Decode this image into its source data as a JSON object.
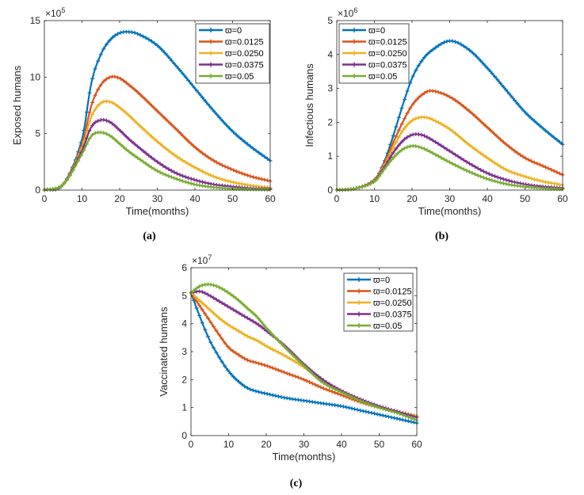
{
  "colors": [
    "#0072BD",
    "#D95319",
    "#EDB120",
    "#7E2F8E",
    "#77AC30"
  ],
  "chart_data": [
    {
      "type": "line",
      "caption": "(a)",
      "xlabel": "Time(months)",
      "ylabel": "Exposed humans",
      "y_multiplier": "×10",
      "y_exponent": "5",
      "xlim": [
        0,
        60
      ],
      "ylim": [
        0,
        15
      ],
      "xticks": [
        "0",
        "10",
        "20",
        "30",
        "40",
        "50",
        "60"
      ],
      "yticks": [
        "0",
        "5",
        "10",
        "15"
      ],
      "legend_position": "top-right",
      "x": [
        0,
        5,
        10,
        12.5,
        15,
        17.5,
        20,
        22.5,
        25,
        30,
        35,
        40,
        45,
        50,
        55,
        60
      ],
      "series": [
        {
          "name": "ϖ=0",
          "values": [
            0,
            0.5,
            4.5,
            9.5,
            12,
            13.3,
            13.9,
            14.0,
            13.8,
            12.8,
            11,
            9,
            7,
            5.2,
            3.8,
            2.6
          ]
        },
        {
          "name": "ϖ=0.0125",
          "values": [
            0,
            0.5,
            4,
            7.5,
            9.3,
            10,
            9.9,
            9.3,
            8.6,
            7,
            5.4,
            3.8,
            2.6,
            1.8,
            1.2,
            0.8
          ]
        },
        {
          "name": "ϖ=0.0250",
          "values": [
            0,
            0.5,
            3.8,
            6.5,
            7.7,
            7.8,
            7.3,
            6.6,
            5.8,
            4.3,
            3.0,
            2.0,
            1.2,
            0.7,
            0.4,
            0.2
          ]
        },
        {
          "name": "ϖ=0.0375",
          "values": [
            0,
            0.5,
            3.5,
            5.6,
            6.2,
            6.0,
            5.3,
            4.5,
            3.8,
            2.5,
            1.5,
            0.9,
            0.5,
            0.3,
            0.15,
            0.1
          ]
        },
        {
          "name": "ϖ=0.05",
          "values": [
            0,
            0.5,
            3.2,
            4.8,
            5.1,
            4.8,
            4.1,
            3.4,
            2.8,
            1.7,
            1.0,
            0.5,
            0.25,
            0.12,
            0.06,
            0.03
          ]
        }
      ]
    },
    {
      "type": "line",
      "caption": "(b)",
      "xlabel": "Time(months)",
      "ylabel": "Infectious humans",
      "y_multiplier": "×10",
      "y_exponent": "6",
      "xlim": [
        0,
        60
      ],
      "ylim": [
        0,
        5
      ],
      "xticks": [
        "0",
        "10",
        "20",
        "30",
        "40",
        "50",
        "60"
      ],
      "yticks": [
        "0",
        "1",
        "2",
        "3",
        "4",
        "5"
      ],
      "legend_position": "top-left",
      "x": [
        0,
        5,
        10,
        12.5,
        15,
        17.5,
        20,
        22.5,
        25,
        30,
        35,
        40,
        45,
        50,
        55,
        60
      ],
      "series": [
        {
          "name": "ϖ=0",
          "values": [
            0,
            0.05,
            0.3,
            0.8,
            1.6,
            2.5,
            3.3,
            3.8,
            4.1,
            4.4,
            4.15,
            3.6,
            2.95,
            2.3,
            1.8,
            1.35
          ]
        },
        {
          "name": "ϖ=0.0125",
          "values": [
            0,
            0.05,
            0.3,
            0.75,
            1.4,
            2.0,
            2.5,
            2.8,
            2.93,
            2.75,
            2.35,
            1.85,
            1.35,
            0.95,
            0.7,
            0.45
          ]
        },
        {
          "name": "ϖ=0.0250",
          "values": [
            0,
            0.05,
            0.28,
            0.7,
            1.25,
            1.75,
            2.05,
            2.15,
            2.1,
            1.8,
            1.35,
            0.95,
            0.6,
            0.4,
            0.25,
            0.15
          ]
        },
        {
          "name": "ϖ=0.0375",
          "values": [
            0,
            0.05,
            0.27,
            0.65,
            1.1,
            1.45,
            1.63,
            1.63,
            1.5,
            1.15,
            0.8,
            0.5,
            0.3,
            0.17,
            0.1,
            0.06
          ]
        },
        {
          "name": "ϖ=0.05",
          "values": [
            0,
            0.05,
            0.25,
            0.6,
            0.95,
            1.2,
            1.3,
            1.25,
            1.12,
            0.82,
            0.55,
            0.33,
            0.18,
            0.1,
            0.05,
            0.03
          ]
        }
      ]
    },
    {
      "type": "line",
      "caption": "(c)",
      "xlabel": "Time(months)",
      "ylabel": "Vaccinated humans",
      "y_multiplier": "×10",
      "y_exponent": "7",
      "xlim": [
        0,
        60
      ],
      "ylim": [
        0,
        6
      ],
      "xticks": [
        "0",
        "10",
        "20",
        "30",
        "40",
        "50",
        "60"
      ],
      "yticks": [
        "0",
        "1",
        "2",
        "3",
        "4",
        "5",
        "6"
      ],
      "legend_position": "top-right",
      "x": [
        0,
        2.5,
        5,
        7.5,
        10,
        12.5,
        15,
        17.5,
        20,
        25,
        30,
        35,
        40,
        45,
        50,
        55,
        60
      ],
      "series": [
        {
          "name": "ϖ=0",
          "values": [
            5.1,
            4.2,
            3.4,
            2.8,
            2.3,
            1.95,
            1.7,
            1.58,
            1.5,
            1.35,
            1.25,
            1.15,
            1.05,
            0.9,
            0.75,
            0.6,
            0.45
          ]
        },
        {
          "name": "ϖ=0.0125",
          "values": [
            5.1,
            4.6,
            4.1,
            3.6,
            3.15,
            2.9,
            2.7,
            2.6,
            2.5,
            2.25,
            2.0,
            1.7,
            1.45,
            1.2,
            1.0,
            0.85,
            0.7
          ]
        },
        {
          "name": "ϖ=0.0250",
          "values": [
            5.1,
            4.8,
            4.5,
            4.2,
            3.95,
            3.75,
            3.55,
            3.4,
            3.2,
            2.85,
            2.45,
            1.95,
            1.55,
            1.25,
            1.02,
            0.85,
            0.7
          ]
        },
        {
          "name": "ϖ=0.0375",
          "values": [
            5.1,
            5.15,
            5.0,
            4.8,
            4.6,
            4.4,
            4.2,
            4.0,
            3.75,
            3.2,
            2.55,
            2.0,
            1.6,
            1.3,
            1.05,
            0.85,
            0.65
          ]
        },
        {
          "name": "ϖ=0.05",
          "values": [
            5.1,
            5.35,
            5.4,
            5.3,
            5.1,
            4.85,
            4.55,
            4.25,
            3.85,
            3.15,
            2.5,
            1.9,
            1.55,
            1.25,
            1.0,
            0.8,
            0.55
          ]
        }
      ]
    }
  ]
}
